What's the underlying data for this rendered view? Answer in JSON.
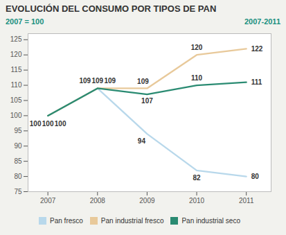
{
  "chart_data": {
    "type": "line",
    "title": "EVOLUCIÓN DEL CONSUMO POR TIPOS DE PAN",
    "subtitle": [
      "2007 = 100",
      "2007-2011"
    ],
    "x": [
      2007,
      2008,
      2009,
      2010,
      2011
    ],
    "series": [
      {
        "name": "Pan fresco",
        "color": "#b8d8eb",
        "values": [
          100,
          109,
          94,
          82,
          80
        ]
      },
      {
        "name": "Pan industrial fresco",
        "color": "#e8c99a",
        "values": [
          100,
          109,
          109,
          120,
          122
        ]
      },
      {
        "name": "Pan industrial seco",
        "color": "#2a8b72",
        "values": [
          100,
          109,
          107,
          110,
          111
        ]
      }
    ],
    "xlim": [
      2006.6,
      2011.5
    ],
    "xticks": [
      2007,
      2008,
      2009,
      2010,
      2011
    ],
    "ylim": [
      75,
      127
    ],
    "yticks": [
      75,
      80,
      85,
      90,
      95,
      100,
      105,
      110,
      115,
      120,
      125
    ],
    "grid": true,
    "legend": "bottom",
    "data_labels": true
  }
}
